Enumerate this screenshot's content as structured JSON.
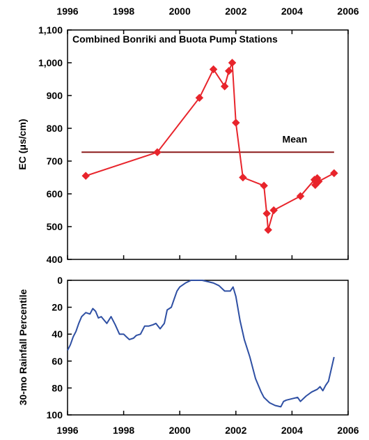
{
  "chart_data": [
    {
      "type": "line",
      "title": "Combined Bonriki and Buota Pump Stations",
      "xlabel": "",
      "ylabel": "EC (μs/cm)",
      "xlim": [
        1996,
        2006
      ],
      "ylim": [
        400,
        1100
      ],
      "x_ticks": [
        "1996",
        "1998",
        "2000",
        "2002",
        "2004",
        "2006"
      ],
      "y_ticks": [
        "400",
        "500",
        "600",
        "700",
        "800",
        "900",
        "1,000",
        "1,100"
      ],
      "grid": false,
      "colors": {
        "series": "#e8242b",
        "mean": "#8b1a1a"
      },
      "series": [
        {
          "name": "",
          "marker": "diamond",
          "x": [
            1996.65,
            1999.2,
            2000.7,
            2001.2,
            2001.6,
            2001.75,
            2001.87,
            2002.0,
            2002.25,
            2003.0,
            2003.1,
            2003.15,
            2003.35,
            2004.3,
            2004.8,
            2004.83,
            2004.87,
            2004.9,
            2004.95,
            2005.5
          ],
          "y": [
            655,
            727,
            893,
            980,
            928,
            975,
            1000,
            817,
            650,
            625,
            540,
            490,
            550,
            593,
            643,
            627,
            635,
            648,
            638,
            663
          ]
        }
      ],
      "mean_line": {
        "label": "Mean",
        "y": 727,
        "x_start": 1996.5,
        "x_end": 2005.5
      }
    },
    {
      "type": "line",
      "title": "",
      "xlabel": "",
      "ylabel": "30-mo Rainfall Percentile",
      "xlim": [
        1996,
        2006
      ],
      "ylim": [
        100,
        0
      ],
      "inverted_y": true,
      "x_ticks": [
        "1996",
        "1998",
        "2000",
        "2002",
        "2004",
        "2006"
      ],
      "y_ticks": [
        "0",
        "20",
        "40",
        "60",
        "80",
        "100"
      ],
      "grid": false,
      "colors": {
        "series": "#2e4fa3"
      },
      "series": [
        {
          "name": "",
          "x": [
            1996.0,
            1996.1,
            1996.2,
            1996.3,
            1996.4,
            1996.5,
            1996.65,
            1996.8,
            1996.9,
            1997.0,
            1997.1,
            1997.2,
            1997.4,
            1997.55,
            1997.7,
            1997.85,
            1998.0,
            1998.1,
            1998.2,
            1998.35,
            1998.45,
            1998.6,
            1998.75,
            1998.9,
            1999.05,
            1999.15,
            1999.3,
            1999.45,
            1999.55,
            1999.7,
            1999.8,
            1999.9,
            2000.0,
            2000.2,
            2000.4,
            2000.6,
            2000.8,
            2001.0,
            2001.2,
            2001.4,
            2001.6,
            2001.8,
            2001.9,
            2002.0,
            2002.15,
            2002.3,
            2002.5,
            2002.7,
            2002.9,
            2003.0,
            2003.2,
            2003.4,
            2003.6,
            2003.7,
            2003.8,
            2004.0,
            2004.2,
            2004.3,
            2004.5,
            2004.7,
            2004.9,
            2005.0,
            2005.1,
            2005.2,
            2005.3,
            2005.5
          ],
          "y": [
            52,
            48,
            42,
            38,
            32,
            27,
            24,
            25,
            21,
            23,
            28,
            27,
            32,
            27,
            33,
            40,
            40,
            42,
            44,
            43,
            41,
            40,
            34,
            34,
            33,
            32,
            36,
            32,
            22,
            20,
            14,
            8,
            5,
            2,
            0,
            0,
            0,
            1,
            2,
            4,
            8,
            8,
            5,
            12,
            30,
            44,
            57,
            73,
            83,
            87,
            91,
            93,
            94,
            90,
            89,
            88,
            87,
            90,
            86,
            83,
            81,
            79,
            82,
            78,
            75,
            57
          ]
        }
      ]
    }
  ]
}
